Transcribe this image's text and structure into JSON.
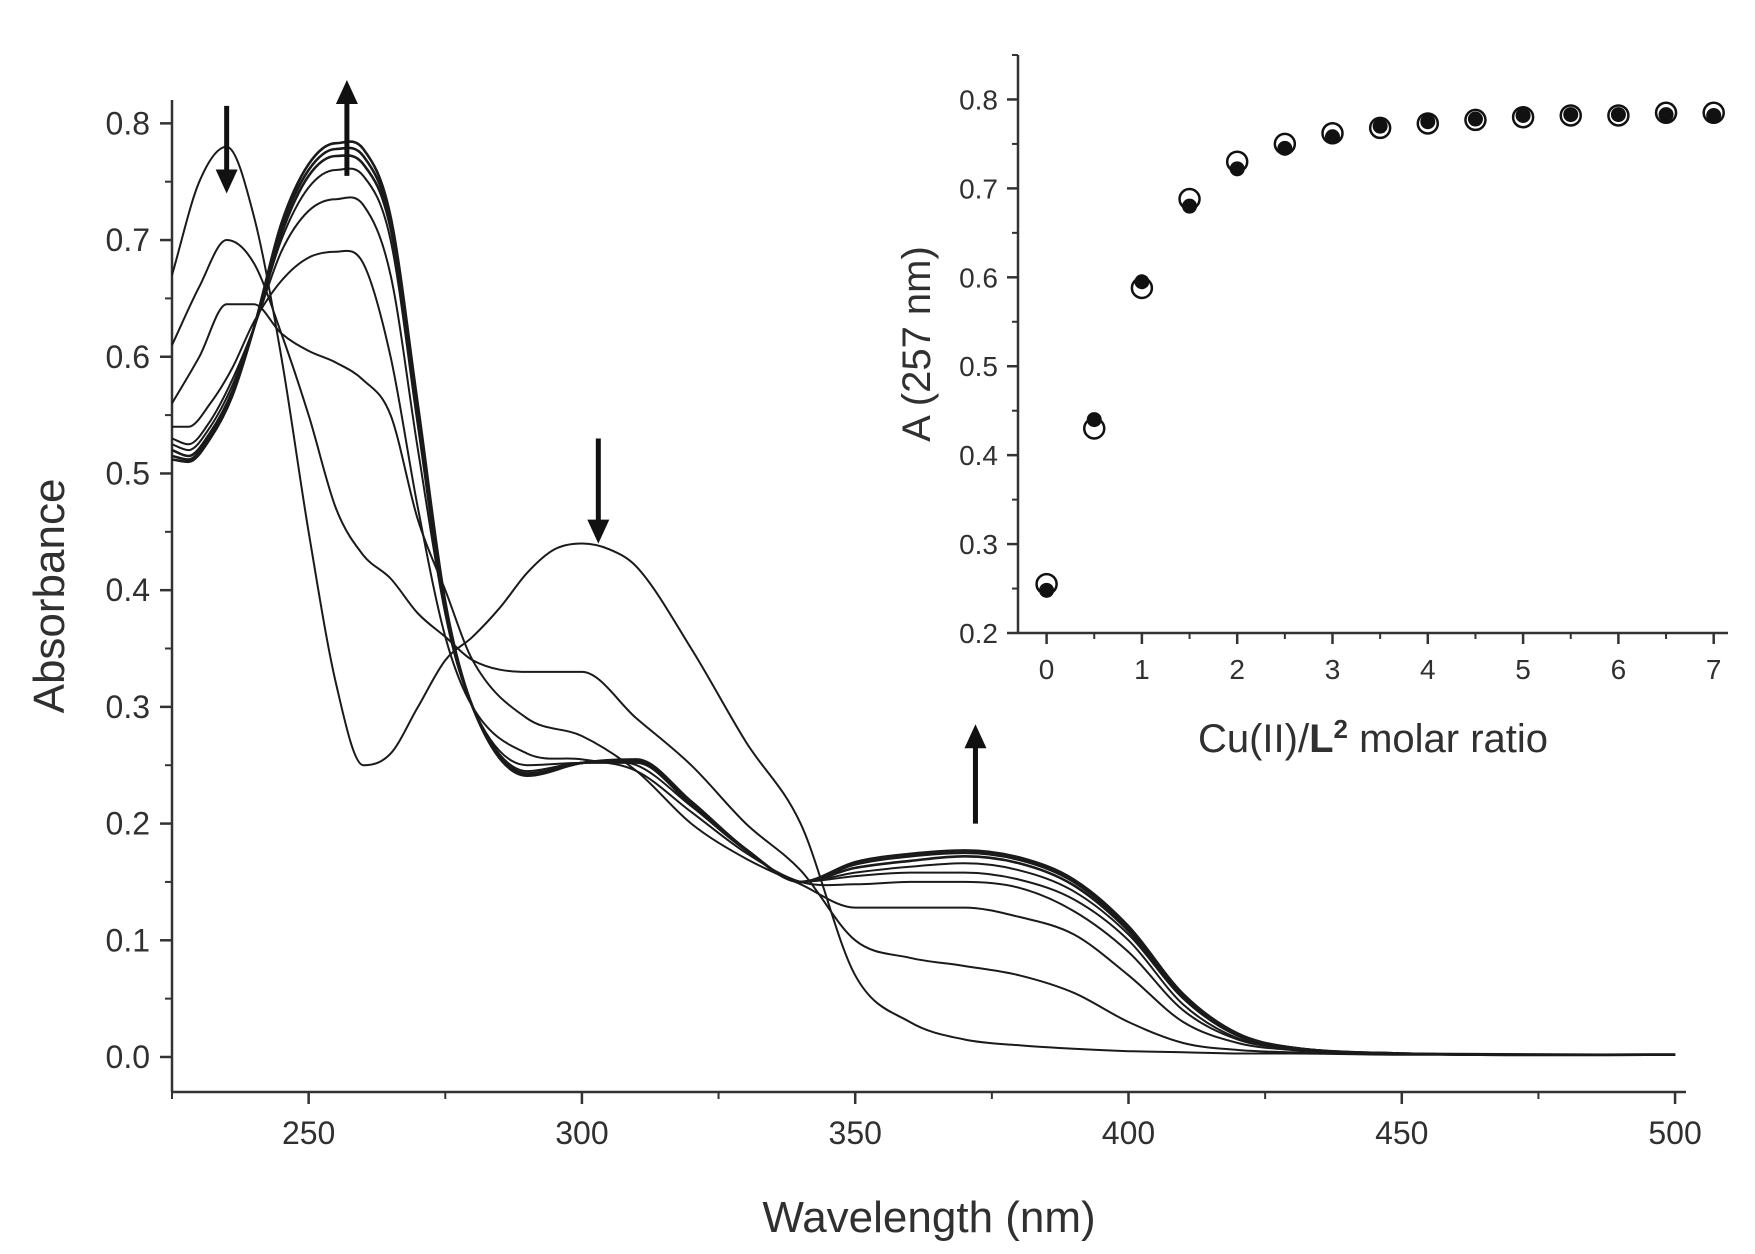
{
  "chart_data": [
    {
      "type": "line",
      "title": "",
      "xlabel": "Wavelength (nm)",
      "ylabel": "Absorbance",
      "xlim": [
        225,
        502
      ],
      "ylim": [
        -0.03,
        0.82
      ],
      "xticks": [
        250,
        300,
        350,
        400,
        450,
        500
      ],
      "yticks": [
        0.0,
        0.1,
        0.2,
        0.3,
        0.4,
        0.5,
        0.6,
        0.7,
        0.8
      ],
      "xtick_labels": [
        "250",
        "300",
        "350",
        "400",
        "450",
        "500"
      ],
      "ytick_labels": [
        "0.0",
        "0.1",
        "0.2",
        "0.3",
        "0.4",
        "0.5",
        "0.6",
        "0.7",
        "0.8"
      ],
      "grid": false,
      "legend": false,
      "series_color": "#1a1a1a",
      "arrows": [
        {
          "x": 235,
          "direction": "down"
        },
        {
          "x": 257,
          "direction": "up"
        },
        {
          "x": 303,
          "direction": "down"
        },
        {
          "x": 372,
          "direction": "up"
        }
      ],
      "series": [
        {
          "x": [
            225,
            230,
            235,
            240,
            245,
            250,
            255,
            260,
            265,
            270,
            275,
            280,
            285,
            290,
            295,
            300,
            305,
            310,
            320,
            330,
            340,
            350,
            360,
            370,
            380,
            390,
            400,
            410,
            420,
            430,
            450,
            500
          ],
          "values": [
            0.67,
            0.75,
            0.78,
            0.72,
            0.6,
            0.45,
            0.32,
            0.25,
            0.26,
            0.3,
            0.34,
            0.36,
            0.385,
            0.415,
            0.435,
            0.44,
            0.435,
            0.42,
            0.35,
            0.27,
            0.2,
            0.07,
            0.03,
            0.015,
            0.01,
            0.007,
            0.005,
            0.004,
            0.003,
            0.003,
            0.002,
            0.002
          ]
        },
        {
          "x": [
            225,
            230,
            235,
            240,
            245,
            250,
            255,
            260,
            265,
            270,
            275,
            280,
            290,
            300,
            310,
            320,
            330,
            340,
            350,
            360,
            370,
            380,
            390,
            400,
            410,
            420,
            430,
            450,
            500
          ],
          "values": [
            0.61,
            0.66,
            0.7,
            0.68,
            0.62,
            0.55,
            0.47,
            0.43,
            0.41,
            0.38,
            0.36,
            0.34,
            0.33,
            0.33,
            0.29,
            0.25,
            0.2,
            0.16,
            0.1,
            0.085,
            0.078,
            0.07,
            0.055,
            0.03,
            0.012,
            0.006,
            0.004,
            0.003,
            0.002
          ]
        },
        {
          "x": [
            225,
            230,
            235,
            240,
            245,
            250,
            255,
            260,
            265,
            270,
            275,
            280,
            290,
            300,
            310,
            320,
            330,
            340,
            350,
            360,
            370,
            380,
            390,
            400,
            410,
            420,
            430,
            450,
            500
          ],
          "values": [
            0.56,
            0.6,
            0.645,
            0.645,
            0.62,
            0.605,
            0.595,
            0.58,
            0.55,
            0.46,
            0.4,
            0.34,
            0.29,
            0.275,
            0.245,
            0.2,
            0.17,
            0.148,
            0.128,
            0.128,
            0.128,
            0.12,
            0.105,
            0.07,
            0.03,
            0.012,
            0.006,
            0.003,
            0.002
          ]
        },
        {
          "x": [
            225,
            228,
            232,
            236,
            240,
            245,
            250,
            255,
            260,
            265,
            270,
            275,
            280,
            290,
            300,
            310,
            320,
            330,
            340,
            350,
            360,
            370,
            380,
            390,
            400,
            410,
            420,
            430,
            450,
            500
          ],
          "values": [
            0.54,
            0.54,
            0.56,
            0.59,
            0.63,
            0.665,
            0.685,
            0.69,
            0.68,
            0.6,
            0.47,
            0.36,
            0.3,
            0.26,
            0.255,
            0.245,
            0.21,
            0.175,
            0.15,
            0.148,
            0.15,
            0.15,
            0.145,
            0.125,
            0.09,
            0.04,
            0.015,
            0.007,
            0.003,
            0.002
          ]
        },
        {
          "x": [
            225,
            228,
            232,
            236,
            240,
            245,
            250,
            255,
            260,
            265,
            270,
            275,
            280,
            290,
            300,
            310,
            320,
            330,
            340,
            350,
            360,
            370,
            380,
            390,
            400,
            410,
            420,
            430,
            450,
            500
          ],
          "values": [
            0.53,
            0.525,
            0.545,
            0.58,
            0.625,
            0.69,
            0.725,
            0.735,
            0.73,
            0.67,
            0.52,
            0.38,
            0.3,
            0.25,
            0.252,
            0.25,
            0.215,
            0.177,
            0.15,
            0.155,
            0.158,
            0.158,
            0.152,
            0.135,
            0.1,
            0.045,
            0.016,
            0.008,
            0.003,
            0.002
          ]
        },
        {
          "x": [
            225,
            228,
            232,
            236,
            240,
            245,
            250,
            255,
            260,
            265,
            270,
            275,
            280,
            290,
            300,
            310,
            320,
            330,
            340,
            350,
            360,
            370,
            380,
            390,
            400,
            410,
            420,
            430,
            450,
            500
          ],
          "values": [
            0.525,
            0.52,
            0.54,
            0.575,
            0.625,
            0.7,
            0.745,
            0.76,
            0.755,
            0.7,
            0.54,
            0.38,
            0.3,
            0.245,
            0.252,
            0.252,
            0.216,
            0.178,
            0.15,
            0.158,
            0.163,
            0.166,
            0.16,
            0.142,
            0.105,
            0.05,
            0.018,
            0.008,
            0.003,
            0.002
          ]
        },
        {
          "x": [
            225,
            228,
            232,
            236,
            240,
            245,
            250,
            255,
            260,
            265,
            270,
            275,
            280,
            290,
            300,
            310,
            320,
            330,
            340,
            350,
            360,
            370,
            380,
            390,
            400,
            410,
            420,
            430,
            450,
            500
          ],
          "values": [
            0.52,
            0.515,
            0.535,
            0.57,
            0.625,
            0.705,
            0.755,
            0.772,
            0.765,
            0.71,
            0.55,
            0.385,
            0.3,
            0.243,
            0.252,
            0.253,
            0.217,
            0.178,
            0.15,
            0.162,
            0.168,
            0.172,
            0.166,
            0.147,
            0.108,
            0.052,
            0.019,
            0.008,
            0.003,
            0.002
          ]
        },
        {
          "x": [
            225,
            228,
            232,
            236,
            240,
            245,
            250,
            255,
            260,
            265,
            270,
            275,
            280,
            290,
            300,
            310,
            320,
            330,
            340,
            350,
            360,
            370,
            380,
            390,
            400,
            410,
            420,
            430,
            450,
            500
          ],
          "values": [
            0.515,
            0.512,
            0.532,
            0.568,
            0.625,
            0.71,
            0.76,
            0.778,
            0.772,
            0.715,
            0.555,
            0.388,
            0.3,
            0.242,
            0.252,
            0.254,
            0.218,
            0.178,
            0.15,
            0.165,
            0.172,
            0.175,
            0.169,
            0.15,
            0.11,
            0.053,
            0.019,
            0.008,
            0.003,
            0.002
          ]
        },
        {
          "x": [
            225,
            228,
            232,
            236,
            240,
            245,
            250,
            255,
            260,
            265,
            270,
            275,
            280,
            290,
            300,
            310,
            320,
            330,
            340,
            350,
            360,
            370,
            380,
            390,
            400,
            410,
            420,
            430,
            450,
            500
          ],
          "values": [
            0.512,
            0.51,
            0.53,
            0.566,
            0.625,
            0.714,
            0.765,
            0.783,
            0.778,
            0.72,
            0.558,
            0.39,
            0.3,
            0.241,
            0.252,
            0.255,
            0.219,
            0.178,
            0.15,
            0.167,
            0.174,
            0.177,
            0.171,
            0.152,
            0.112,
            0.054,
            0.02,
            0.008,
            0.003,
            0.002
          ]
        }
      ]
    },
    {
      "type": "scatter",
      "title": "",
      "xlabel_parts": [
        "Cu(II)/",
        "L",
        "2",
        " molar ratio"
      ],
      "ylabel": "A (257 nm)",
      "xlim": [
        -0.3,
        7.15
      ],
      "ylim": [
        0.2,
        0.85
      ],
      "xticks": [
        0,
        1,
        2,
        3,
        4,
        5,
        6,
        7
      ],
      "yticks": [
        0.2,
        0.3,
        0.4,
        0.5,
        0.6,
        0.7,
        0.8
      ],
      "xtick_labels": [
        "0",
        "1",
        "2",
        "3",
        "4",
        "5",
        "6",
        "7"
      ],
      "ytick_labels": [
        "0.2",
        "0.3",
        "0.4",
        "0.5",
        "0.6",
        "0.7",
        "0.8"
      ],
      "grid": false,
      "legend": false,
      "series": [
        {
          "marker": "filled-circle",
          "color": "#111111",
          "x": [
            0,
            0.5,
            1,
            1.5,
            2,
            2.5,
            3,
            3.5,
            4,
            4.5,
            5,
            5.5,
            6,
            6.5,
            7
          ],
          "values": [
            0.248,
            0.44,
            0.595,
            0.68,
            0.722,
            0.745,
            0.758,
            0.77,
            0.775,
            0.778,
            0.782,
            0.783,
            0.783,
            0.783,
            0.782
          ]
        },
        {
          "marker": "open-circle",
          "color": "#111111",
          "x": [
            0,
            0.5,
            1,
            1.5,
            2,
            2.5,
            3,
            3.5,
            4,
            4.5,
            5,
            5.5,
            6,
            6.5,
            7
          ],
          "values": [
            0.255,
            0.43,
            0.588,
            0.688,
            0.73,
            0.75,
            0.762,
            0.768,
            0.773,
            0.777,
            0.78,
            0.782,
            0.782,
            0.785,
            0.785
          ]
        }
      ]
    }
  ]
}
